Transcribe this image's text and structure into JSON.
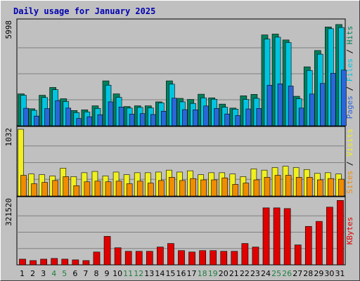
{
  "chart_data": {
    "type": "bar",
    "title": "Daily usage for January 2025",
    "days": [
      {
        "label": "1",
        "weekend": false
      },
      {
        "label": "2",
        "weekend": false
      },
      {
        "label": "3",
        "weekend": false
      },
      {
        "label": "4",
        "weekend": true
      },
      {
        "label": "5",
        "weekend": true
      },
      {
        "label": "6",
        "weekend": false
      },
      {
        "label": "7",
        "weekend": false
      },
      {
        "label": "8",
        "weekend": false
      },
      {
        "label": "9",
        "weekend": false
      },
      {
        "label": "10",
        "weekend": false
      },
      {
        "label": "11",
        "weekend": true
      },
      {
        "label": "12",
        "weekend": true
      },
      {
        "label": "13",
        "weekend": false
      },
      {
        "label": "14",
        "weekend": false
      },
      {
        "label": "15",
        "weekend": false
      },
      {
        "label": "16",
        "weekend": false
      },
      {
        "label": "17",
        "weekend": false
      },
      {
        "label": "18",
        "weekend": true
      },
      {
        "label": "19",
        "weekend": true
      },
      {
        "label": "20",
        "weekend": false
      },
      {
        "label": "21",
        "weekend": false
      },
      {
        "label": "22",
        "weekend": false
      },
      {
        "label": "23",
        "weekend": false
      },
      {
        "label": "24",
        "weekend": false
      },
      {
        "label": "25",
        "weekend": true
      },
      {
        "label": "26",
        "weekend": true
      },
      {
        "label": "27",
        "weekend": false
      },
      {
        "label": "28",
        "weekend": false
      },
      {
        "label": "29",
        "weekend": false
      },
      {
        "label": "30",
        "weekend": false
      },
      {
        "label": "31",
        "weekend": false
      }
    ],
    "panels": [
      {
        "max_label": "5998",
        "ymax": 5998,
        "legend": [
          "Pages",
          "Files",
          "Hits"
        ],
        "series": [
          {
            "name": "Hits",
            "color": "#00805c",
            "values": [
              1840,
              980,
              1760,
              2210,
              1560,
              880,
              920,
              1150,
              2590,
              1840,
              1110,
              1150,
              1150,
              1380,
              2590,
              1580,
              1520,
              1820,
              1610,
              1250,
              1020,
              1730,
              1810,
              5240,
              5290,
              4950,
              1700,
              3400,
              4340,
              5700,
              5840
            ]
          },
          {
            "name": "Files",
            "color": "#00c4e0",
            "values": [
              1760,
              890,
              1630,
              2080,
              1400,
              760,
              800,
              1000,
              2340,
              1640,
              1020,
              1060,
              1030,
              1320,
              2400,
              1380,
              1290,
              1610,
              1530,
              1070,
              960,
              1520,
              1580,
              5000,
              5110,
              4800,
              1560,
              3190,
              4130,
              5600,
              5670
            ]
          },
          {
            "name": "Pages",
            "color": "#2b66d8",
            "values": [
              1010,
              560,
              990,
              1450,
              1020,
              420,
              520,
              640,
              1380,
              1080,
              670,
              700,
              650,
              840,
              1590,
              930,
              920,
              1140,
              1000,
              680,
              590,
              970,
              1000,
              2340,
              2420,
              2290,
              1020,
              1830,
              2440,
              3030,
              3210
            ]
          }
        ]
      },
      {
        "max_label": "1032",
        "ymax": 1032,
        "legend": [
          "Sites",
          "Visits"
        ],
        "series": [
          {
            "name": "Visits",
            "color": "#f0f020",
            "values": [
              1032,
              340,
              330,
              310,
              430,
              300,
              360,
              380,
              310,
              370,
              330,
              360,
              360,
              370,
              400,
              370,
              390,
              330,
              360,
              360,
              340,
              300,
              420,
              400,
              440,
              460,
              440,
              410,
              350,
              360,
              340
            ]
          },
          {
            "name": "Sites",
            "color": "#f08c00",
            "values": [
              320,
              190,
              210,
              240,
              300,
              160,
              220,
              230,
              220,
              230,
              190,
              230,
              200,
              240,
              290,
              240,
              270,
              250,
              250,
              280,
              180,
              200,
              250,
              290,
              320,
              320,
              290,
              290,
              250,
              270,
              260
            ]
          }
        ]
      },
      {
        "max_label": "321520",
        "ymax": 321520,
        "legend": [
          "KBytes"
        ],
        "series": [
          {
            "name": "KBytes",
            "color": "#e00000",
            "values": [
              28050,
              21040,
              28050,
              31560,
              28050,
              24550,
              21040,
              63120,
              140250,
              84170,
              66630,
              66630,
              66630,
              87680,
              105210,
              70140,
              63120,
              70140,
              70140,
              66630,
              66630,
              105210,
              87680,
              280500,
              280500,
              276990,
              98190,
              189350,
              213900,
              283960,
              317000
            ]
          }
        ]
      }
    ]
  }
}
